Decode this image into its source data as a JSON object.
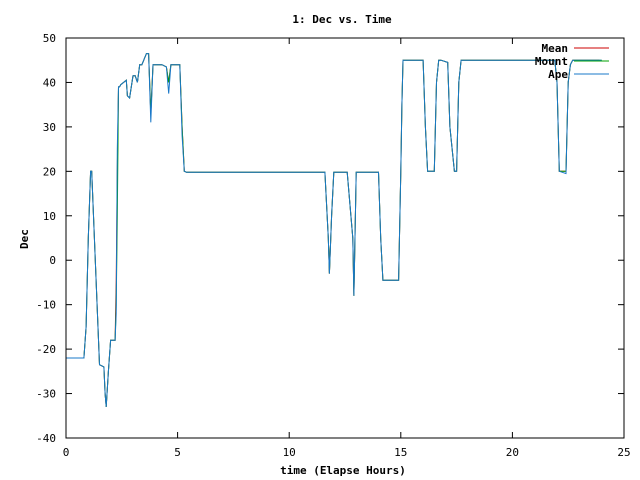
{
  "chart_data": {
    "type": "line",
    "title": "1: Dec vs. Time",
    "xlabel": "time (Elapse Hours)",
    "ylabel": "Dec",
    "xlim": [
      0,
      25
    ],
    "ylim": [
      -40,
      50
    ],
    "xticks": [
      0,
      5,
      10,
      15,
      20,
      25
    ],
    "yticks": [
      -40,
      -30,
      -20,
      -10,
      0,
      10,
      20,
      30,
      40,
      50
    ],
    "grid": false,
    "legend_position": "top-right",
    "series": [
      {
        "name": "Mean",
        "color": "#cc0000",
        "x": [
          0,
          0.8,
          0.9,
          1.0,
          1.1,
          1.15,
          1.5,
          1.7,
          1.75,
          1.8,
          1.9,
          2.0,
          2.1,
          2.2,
          2.25,
          2.3,
          2.35,
          2.4,
          2.45,
          2.7,
          2.75,
          2.85,
          3.0,
          3.1,
          3.2,
          3.3,
          3.4,
          3.6,
          3.7,
          3.8,
          3.9,
          3.95,
          4.0,
          4.05,
          4.1,
          4.3,
          4.5,
          4.6,
          4.7,
          4.75,
          4.8,
          4.85,
          5.1,
          5.2,
          5.3,
          5.4,
          8.3,
          11.6,
          11.75,
          11.8,
          11.9,
          12.0,
          12.1,
          12.2,
          12.5,
          12.6,
          12.85,
          12.9,
          13.0,
          13.1,
          13.3,
          13.5,
          13.7,
          14.0,
          14.1,
          14.2,
          14.3,
          14.6,
          14.8,
          14.9,
          15.0,
          15.05,
          15.1,
          15.2,
          15.3,
          15.4,
          15.5,
          16.0,
          16.1,
          16.2,
          16.5,
          16.6,
          16.7,
          16.8,
          17.1,
          17.2,
          17.4,
          17.5,
          17.6,
          17.7,
          17.8,
          18.0,
          21.8,
          21.9,
          22.0,
          22.1,
          22.4,
          22.5,
          22.6,
          22.7,
          22.8,
          23.9
        ],
        "y": [
          -22,
          -22,
          -15,
          5,
          20,
          20,
          -23.5,
          -24,
          -30,
          -33,
          -25,
          -18,
          -18,
          -18,
          -5,
          20,
          39,
          39,
          39.5,
          40.5,
          37,
          36.5,
          41.5,
          41.5,
          40,
          44,
          44,
          46.5,
          46.5,
          33,
          44,
          44,
          44,
          44,
          44,
          44,
          43.5,
          40,
          44,
          44,
          44,
          44,
          44,
          30,
          20,
          19.8,
          19.8,
          19.8,
          5,
          -3,
          10,
          19.8,
          19.8,
          19.8,
          19.8,
          19.8,
          5,
          -8,
          19.8,
          19.8,
          19.8,
          19.8,
          19.8,
          19.8,
          5,
          -4.5,
          -4.5,
          -4.5,
          -4.5,
          -4.5,
          20,
          35,
          45,
          45,
          45,
          45,
          45,
          45,
          30,
          20,
          20,
          40,
          45,
          45,
          44.5,
          30,
          20,
          20,
          40,
          45,
          45,
          45,
          45,
          45,
          40,
          20,
          20,
          40,
          44,
          45,
          45,
          45
        ]
      },
      {
        "name": "Mount",
        "color": "#00a000",
        "x": [
          0,
          0.8,
          0.9,
          1.0,
          1.1,
          1.15,
          1.5,
          1.7,
          1.75,
          1.8,
          1.9,
          2.0,
          2.1,
          2.2,
          2.25,
          2.3,
          2.35,
          2.4,
          2.45,
          2.7,
          2.75,
          2.85,
          3.0,
          3.1,
          3.2,
          3.3,
          3.4,
          3.6,
          3.7,
          3.8,
          3.9,
          3.95,
          4.0,
          4.05,
          4.1,
          4.3,
          4.5,
          4.6,
          4.7,
          4.75,
          4.8,
          4.85,
          5.1,
          5.2,
          5.3,
          5.4,
          8.3,
          11.6,
          11.75,
          11.8,
          11.9,
          12.0,
          12.1,
          12.2,
          12.5,
          12.6,
          12.85,
          12.9,
          13.0,
          13.1,
          13.3,
          13.5,
          13.7,
          14.0,
          14.1,
          14.2,
          14.3,
          14.6,
          14.8,
          14.9,
          15.0,
          15.05,
          15.1,
          15.2,
          15.3,
          15.4,
          15.5,
          16.0,
          16.1,
          16.2,
          16.5,
          16.6,
          16.7,
          16.8,
          17.1,
          17.2,
          17.4,
          17.5,
          17.6,
          17.7,
          17.8,
          18.0,
          21.8,
          21.9,
          22.0,
          22.1,
          22.4,
          22.5,
          22.6,
          22.7,
          22.8,
          24.0
        ],
        "y": [
          -22,
          -22,
          -15,
          5,
          20,
          20,
          -23.5,
          -24,
          -30,
          -33,
          -25,
          -18,
          -18,
          -18,
          -10,
          10,
          39,
          39,
          39.5,
          40.5,
          37,
          36.5,
          41.5,
          41.5,
          40,
          44,
          44,
          46.5,
          46.5,
          33,
          44,
          44,
          44,
          44,
          44,
          44,
          43.5,
          40,
          44,
          44,
          44,
          44,
          44,
          30,
          20,
          19.8,
          19.8,
          19.8,
          5,
          -3,
          10,
          19.8,
          19.8,
          19.8,
          19.8,
          19.8,
          5,
          -8,
          19.8,
          19.8,
          19.8,
          19.8,
          19.8,
          19.8,
          5,
          -4.5,
          -4.5,
          -4.5,
          -4.5,
          -4.5,
          20,
          35,
          45,
          45,
          45,
          45,
          45,
          45,
          30,
          20,
          20,
          40,
          45,
          45,
          44.5,
          30,
          20,
          20,
          40,
          45,
          45,
          45,
          45,
          45,
          40,
          20,
          20,
          40,
          44,
          45,
          45,
          45
        ]
      },
      {
        "name": "Ape",
        "color": "#1a78c8",
        "x": [
          0,
          0.8,
          0.9,
          1.0,
          1.1,
          1.15,
          1.5,
          1.7,
          1.75,
          1.8,
          1.9,
          2.0,
          2.1,
          2.2,
          2.25,
          2.3,
          2.35,
          2.4,
          2.45,
          2.7,
          2.75,
          2.85,
          3.0,
          3.1,
          3.2,
          3.3,
          3.4,
          3.6,
          3.7,
          3.8,
          3.9,
          3.95,
          4.0,
          4.05,
          4.1,
          4.3,
          4.5,
          4.6,
          4.7,
          4.75,
          4.8,
          4.85,
          5.1,
          5.2,
          5.3,
          5.4,
          8.3,
          11.6,
          11.75,
          11.8,
          11.9,
          12.0,
          12.1,
          12.2,
          12.5,
          12.6,
          12.85,
          12.9,
          13.0,
          13.1,
          13.3,
          13.5,
          13.7,
          14.0,
          14.1,
          14.2,
          14.3,
          14.6,
          14.8,
          14.9,
          15.0,
          15.05,
          15.1,
          15.2,
          15.3,
          15.4,
          15.5,
          16.0,
          16.1,
          16.2,
          16.5,
          16.6,
          16.7,
          16.8,
          17.1,
          17.2,
          17.4,
          17.5,
          17.6,
          17.7,
          17.8,
          18.0,
          21.8,
          21.9,
          22.0,
          22.1,
          22.4,
          22.5,
          22.6,
          22.7,
          22.8,
          24.0
        ],
        "y": [
          -22,
          -22,
          -15,
          5,
          20,
          20,
          -23.5,
          -24,
          -30,
          -33,
          -25,
          -18,
          -18,
          -18,
          -12,
          25,
          39,
          39,
          39.5,
          40.5,
          37,
          36.5,
          41.5,
          41.5,
          40,
          44,
          44,
          46.5,
          46.5,
          31,
          44,
          44,
          44,
          44,
          44,
          44,
          43.5,
          37.5,
          44,
          44,
          44,
          44,
          44,
          28,
          20,
          19.8,
          19.8,
          19.8,
          5,
          -3,
          10,
          19.8,
          19.8,
          19.8,
          19.8,
          19.8,
          5,
          -8,
          19.8,
          19.8,
          19.8,
          19.8,
          19.8,
          19.8,
          5,
          -4.5,
          -4.5,
          -4.5,
          -4.5,
          -4.5,
          20,
          35,
          45,
          45,
          45,
          45,
          45,
          45,
          30,
          20,
          20,
          40,
          45,
          45,
          44.5,
          30,
          20,
          20,
          40,
          45,
          45,
          45,
          45,
          45,
          40,
          20,
          19.5,
          40,
          44,
          45,
          45,
          45
        ]
      }
    ]
  }
}
